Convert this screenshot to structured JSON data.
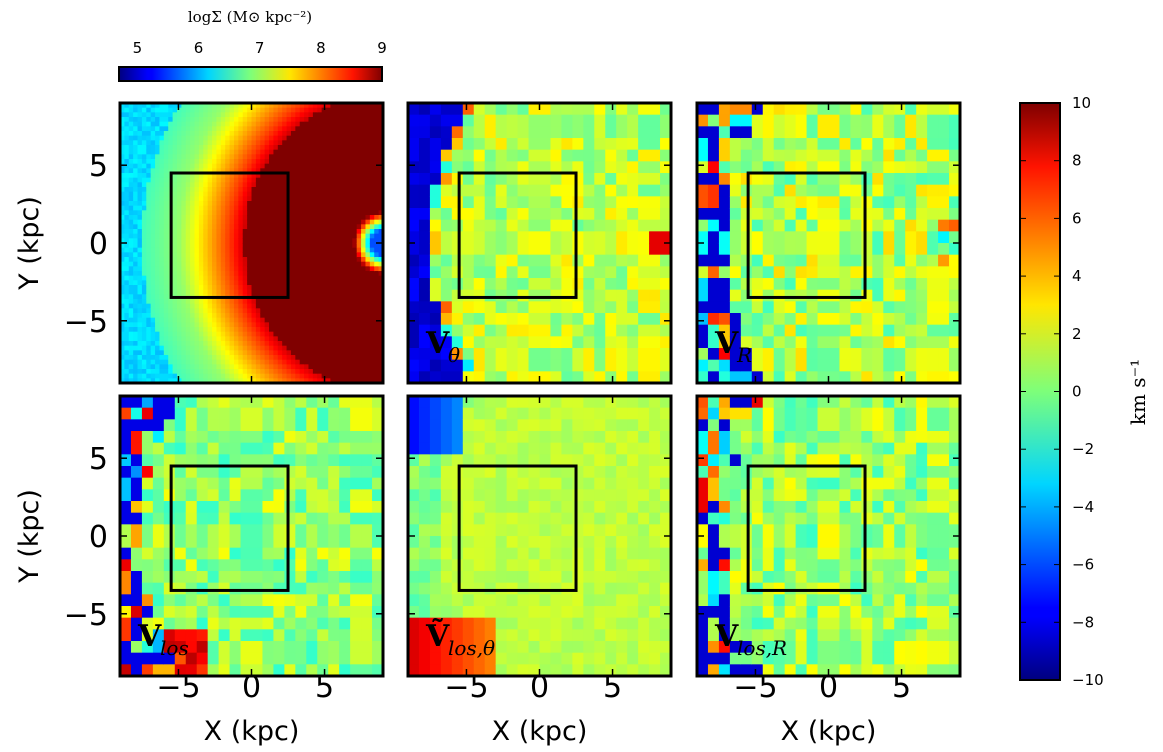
{
  "chart_data": {
    "type": "heatmap",
    "layout": "2x3 grid of map panels sharing axes",
    "panels": [
      {
        "id": "surface-density",
        "label": "",
        "label_sub": "",
        "colorbar": "density"
      },
      {
        "id": "v-theta",
        "label": "V",
        "label_sub": "θ",
        "colorbar": "velocity"
      },
      {
        "id": "v-r",
        "label": "V",
        "label_sub": "R",
        "colorbar": "velocity"
      },
      {
        "id": "v-los",
        "label": "V",
        "label_sub": "los",
        "colorbar": "velocity"
      },
      {
        "id": "v-los-theta",
        "label": "Ṽ",
        "label_sub": "los,θ",
        "colorbar": "velocity"
      },
      {
        "id": "v-los-r",
        "label": "V",
        "label_sub": "los,R",
        "colorbar": "velocity"
      }
    ],
    "xlabel": "X (kpc)",
    "ylabel": "Y (kpc)",
    "xlim": [
      -9,
      9
    ],
    "ylim": [
      -9,
      9
    ],
    "xticks": [
      "−5",
      "0",
      "5"
    ],
    "yticks": [
      "5",
      "0",
      "−5"
    ],
    "inner_box": {
      "x": [
        -5.5,
        2.5
      ],
      "y": [
        -3.5,
        4.5
      ]
    },
    "density_colorbar": {
      "title": "logΣ (M⊙ kpc⁻²)",
      "range": [
        4.7,
        9
      ],
      "ticks": [
        "5",
        "6",
        "7",
        "8",
        "9"
      ],
      "orientation": "horizontal"
    },
    "velocity_colorbar": {
      "unit": "km s⁻¹",
      "range": [
        -10,
        10
      ],
      "ticks": [
        "10",
        "8",
        "6",
        "4",
        "2",
        "0",
        "−2",
        "−4",
        "−6",
        "−8",
        "−10"
      ],
      "orientation": "vertical"
    },
    "colormap": "jet"
  }
}
